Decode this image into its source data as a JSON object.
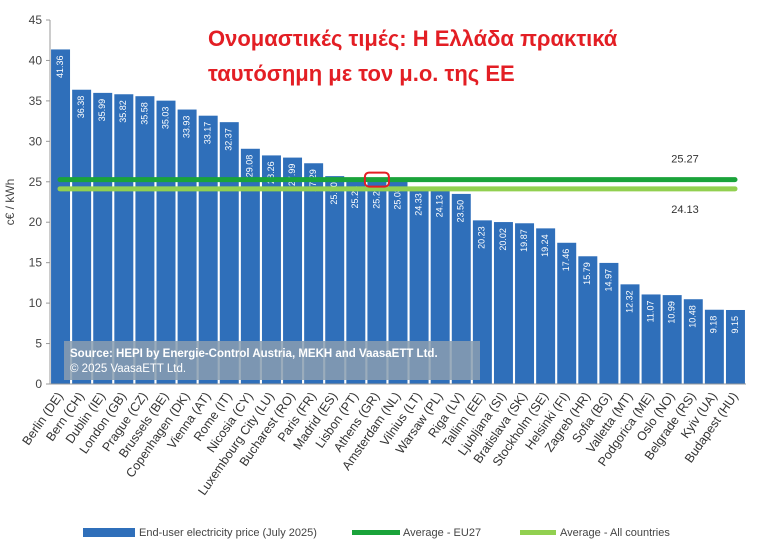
{
  "chart_data": {
    "type": "bar",
    "title_lines": [
      "Ονομαστικές τιμές: Η Ελλάδα πρακτικά",
      "ταυτόσημη με τον μ.ο. της ΕΕ"
    ],
    "ylabel": "c€ / kWh",
    "ylim": [
      0,
      45
    ],
    "yticks": [
      0,
      5,
      10,
      15,
      20,
      25,
      30,
      35,
      40,
      45
    ],
    "categories": [
      "Berlin (DE)",
      "Bern (CH)",
      "Dublin (IE)",
      "London (GB)",
      "Prague (CZ)",
      "Brussels (BE)",
      "Copenhagen (DK)",
      "Vienna (AT)",
      "Rome (IT)",
      "Nicosia (CY)",
      "Luxembourg City (LU)",
      "Bucharest (RO)",
      "Paris (FR)",
      "Madrid (ES)",
      "Lisbon (PT)",
      "Athens (GR)",
      "Amsterdam (NL)",
      "Vilnius (LT)",
      "Warsaw (PL)",
      "Riga (LV)",
      "Tallinn (EE)",
      "Ljubljana (SI)",
      "Bratislava (SK)",
      "Stockholm (SE)",
      "Helsinki (FI)",
      "Zagreb (HR)",
      "Sofia (BG)",
      "Valletta (MT)",
      "Podgorica (ME)",
      "Oslo (NO)",
      "Belgrade (RS)",
      "Kyiv (UA)",
      "Budapest (HU)"
    ],
    "series": [
      {
        "name": "End-user electricity price (July 2025)",
        "color": "#2f6fba",
        "values": [
          41.36,
          36.38,
          35.99,
          35.82,
          35.58,
          35.03,
          33.93,
          33.17,
          32.37,
          29.08,
          28.26,
          27.99,
          27.29,
          25.7,
          25.23,
          25.2,
          25.08,
          24.33,
          24.13,
          23.5,
          20.23,
          20.02,
          19.87,
          19.24,
          17.46,
          15.79,
          14.97,
          12.32,
          11.07,
          10.99,
          10.48,
          9.18,
          9.15
        ]
      },
      {
        "name": "Average - EU27",
        "color": "#1aa33a",
        "value": 25.27
      },
      {
        "name": "Average - All countries",
        "color": "#92d050",
        "value": 24.13
      }
    ],
    "value_labels": [
      "41.36",
      "36.38",
      "35.99",
      "35.82",
      "35.58",
      "35.03",
      "33.93",
      "33.17",
      "32.37",
      "29.08",
      "28.26",
      "27.99",
      "27.29",
      "25.70",
      "25.23",
      "25.20",
      "25.08",
      "24.33",
      "24.13",
      "23.50",
      "20.23",
      "20.02",
      "19.87",
      "19.24",
      "17.46",
      "15.79",
      "14.97",
      "12.32",
      "11.07",
      "10.99",
      "10.48",
      "9.18",
      "9.15"
    ],
    "avg_labels": {
      "eu27": "25.27",
      "all": "24.13"
    },
    "highlight_category": "Athens (GR)",
    "highlight_color": "#e31e24",
    "source_lines": [
      "Source: HEPI by Energie-Control Austria, MEKH and VaasaETT Ltd.",
      "© 2025 VaasaETT Ltd."
    ],
    "legend_position": "bottom",
    "grid": false
  }
}
